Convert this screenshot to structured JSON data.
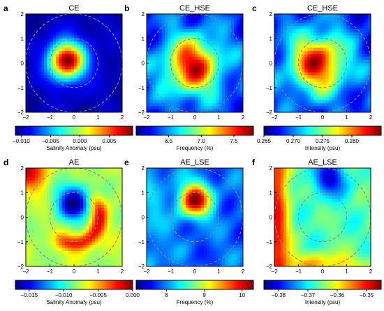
{
  "chart_data": [
    {
      "type": "heatmap",
      "letter": "a",
      "title": "CE",
      "xlim": [
        -2,
        2
      ],
      "ylim": [
        -2,
        2
      ],
      "xticks": [
        "−2",
        "−1",
        "0",
        "1",
        "2"
      ],
      "yticks": [
        "2",
        "1",
        "0",
        "−1",
        "−2"
      ],
      "circles": [
        {
          "radius": 1,
          "style": "dashed"
        },
        {
          "radius": 2,
          "style": "dashed"
        }
      ],
      "center": {
        "x": -0.3,
        "y": 0.1
      },
      "pattern": "monopole-high",
      "colorbar": {
        "label": "Salinity Anomaly (psu)",
        "range": [
          -0.011,
          0.009
        ],
        "ticks": [
          {
            "value": -0.01,
            "label": "−0.010"
          },
          {
            "value": -0.005,
            "label": "−0.005"
          },
          {
            "value": 0.0,
            "label": "0.000"
          },
          {
            "value": 0.005,
            "label": "0.005"
          }
        ]
      }
    },
    {
      "type": "heatmap",
      "letter": "b",
      "title": "CE_HSE",
      "xlim": [
        -2,
        2
      ],
      "ylim": [
        -2,
        2
      ],
      "xticks": [
        "−2",
        "−1",
        "0",
        "1",
        "2"
      ],
      "yticks": [
        "2",
        "1",
        "0",
        "−1",
        "−2"
      ],
      "circles": [
        {
          "radius": 1,
          "style": "dashed"
        },
        {
          "radius": 2,
          "style": "dashed"
        }
      ],
      "center": {
        "x": -0.1,
        "y": -0.1
      },
      "pattern": "broad-high",
      "colorbar": {
        "label": "Frequency (%)",
        "range": [
          6.0,
          7.8
        ],
        "ticks": [
          {
            "value": 6.5,
            "label": "6.5"
          },
          {
            "value": 7.0,
            "label": "7.0"
          },
          {
            "value": 7.5,
            "label": "7.5"
          }
        ]
      }
    },
    {
      "type": "heatmap",
      "letter": "c",
      "title": "CE_HSE",
      "xlim": [
        -2,
        2
      ],
      "ylim": [
        -2,
        2
      ],
      "xticks": [
        "−2",
        "−1",
        "0",
        "1",
        "2"
      ],
      "yticks": [
        "2",
        "1",
        "0",
        "−1",
        "−2"
      ],
      "circles": [
        {
          "radius": 1,
          "style": "dashed"
        },
        {
          "radius": 2,
          "style": "dashed"
        }
      ],
      "center": {
        "x": -0.2,
        "y": 0.0
      },
      "pattern": "broad-high",
      "colorbar": {
        "label": "Intensity (psu)",
        "range": [
          0.265,
          0.285
        ],
        "ticks": [
          {
            "value": 0.265,
            "label": "0.265"
          },
          {
            "value": 0.27,
            "label": "0.270"
          },
          {
            "value": 0.275,
            "label": "0.275"
          },
          {
            "value": 0.28,
            "label": "0.280"
          }
        ]
      }
    },
    {
      "type": "heatmap",
      "letter": "d",
      "title": "AE",
      "xlim": [
        -2,
        2
      ],
      "ylim": [
        -2,
        2
      ],
      "xticks": [
        "−2",
        "−1",
        "0",
        "1",
        "2"
      ],
      "yticks": [
        "2",
        "1",
        "0",
        "−1",
        "−2"
      ],
      "circles": [
        {
          "radius": 1,
          "style": "dashed"
        },
        {
          "radius": 2,
          "style": "dashed"
        }
      ],
      "center": {
        "x": 0.0,
        "y": 0.6
      },
      "pattern": "dipole-low",
      "colorbar": {
        "label": "Salinity Anomaly (psu)",
        "range": [
          -0.017,
          0.0
        ],
        "ticks": [
          {
            "value": -0.015,
            "label": "−0.015"
          },
          {
            "value": -0.01,
            "label": "−0.010"
          },
          {
            "value": -0.005,
            "label": "−0.005"
          },
          {
            "value": 0.0,
            "label": "0.000"
          }
        ]
      }
    },
    {
      "type": "heatmap",
      "letter": "e",
      "title": "AE_LSE",
      "xlim": [
        -2,
        2
      ],
      "ylim": [
        -2,
        2
      ],
      "xticks": [
        "−2",
        "−1",
        "0",
        "1",
        "2"
      ],
      "yticks": [
        "2",
        "1",
        "0",
        "−1",
        "−2"
      ],
      "circles": [
        {
          "radius": 1,
          "style": "dashed"
        },
        {
          "radius": 2,
          "style": "dashed"
        }
      ],
      "center": {
        "x": 0.0,
        "y": 0.7
      },
      "pattern": "upper-high",
      "colorbar": {
        "label": "Frequency (%)",
        "range": [
          7.2,
          10.3
        ],
        "ticks": [
          {
            "value": 8,
            "label": "8"
          },
          {
            "value": 9,
            "label": "9"
          },
          {
            "value": 10,
            "label": "10"
          }
        ]
      }
    },
    {
      "type": "heatmap",
      "letter": "f",
      "title": "AE_LSE",
      "xlim": [
        -2,
        2
      ],
      "ylim": [
        -2,
        2
      ],
      "xticks": [
        "−2",
        "−1",
        "0",
        "1",
        "2"
      ],
      "yticks": [
        "2",
        "1",
        "0",
        "−1",
        "−2"
      ],
      "circles": [
        {
          "radius": 1,
          "style": "dashed"
        },
        {
          "radius": 2,
          "style": "dashed"
        }
      ],
      "center": {
        "x": 0.3,
        "y": 1.6
      },
      "pattern": "edge-high",
      "colorbar": {
        "label": "Intensity (psu)",
        "range": [
          -0.385,
          -0.345
        ],
        "ticks": [
          {
            "value": -0.38,
            "label": "−0.38"
          },
          {
            "value": -0.37,
            "label": "−0.37"
          },
          {
            "value": -0.36,
            "label": "−0.36"
          },
          {
            "value": -0.35,
            "label": "−0.35"
          }
        ]
      }
    }
  ],
  "colors": {
    "jet": [
      "#00007f",
      "#0000ff",
      "#007fff",
      "#00ffff",
      "#7fff7f",
      "#ffff00",
      "#ff7f00",
      "#ff0000",
      "#7f0000"
    ],
    "circle_stroke": "#888888",
    "axis": "#000000"
  }
}
